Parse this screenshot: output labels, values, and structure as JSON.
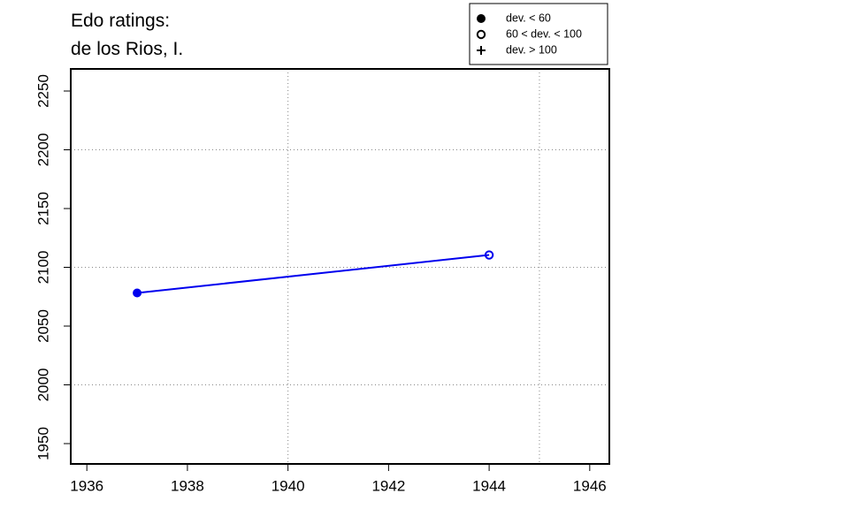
{
  "chart_data": {
    "type": "line",
    "title": [
      "Edo ratings:",
      "de los Rios, I."
    ],
    "x": [
      1937,
      1944
    ],
    "series": [
      {
        "name": "de los Rios, I.",
        "color": "#0000ee",
        "values": [
          2078.2,
          2110.5
        ],
        "marker": [
          "filled",
          "open"
        ]
      }
    ],
    "legend": {
      "entries": [
        {
          "label": "dev. < 60",
          "marker": "filled"
        },
        {
          "label": "60 < dev. < 100",
          "marker": "open"
        },
        {
          "label": "dev. > 100",
          "marker": "plus"
        }
      ],
      "position": "top-right"
    },
    "xlim": [
      1935.68,
      1946.39
    ],
    "xticks": [
      1936,
      1938,
      1940,
      1942,
      1944,
      1946
    ],
    "ylim": [
      1932.7,
      2268.8
    ],
    "yticks": [
      1950,
      2000,
      2050,
      2100,
      2150,
      2200,
      2250
    ],
    "xgrid": [
      1940,
      1945
    ],
    "ygrid": [
      2000,
      2100,
      2200
    ]
  }
}
